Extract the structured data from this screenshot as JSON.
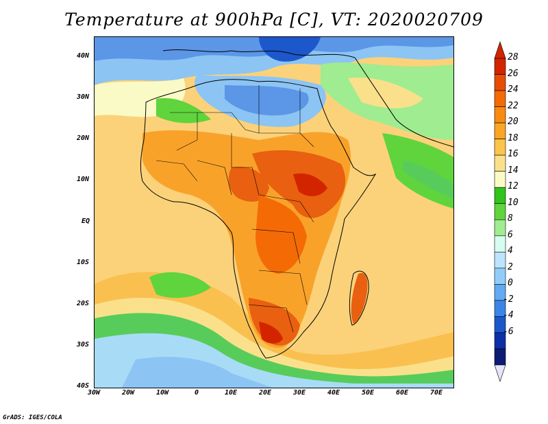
{
  "title": "Temperature at 900hPa [C], VT: 2020020709",
  "credit": "GrADS: IGES/COLA",
  "axes": {
    "lat_labels": [
      "40N",
      "30N",
      "20N",
      "10N",
      "EQ",
      "10S",
      "20S",
      "30S",
      "40S"
    ],
    "lon_labels": [
      "30W",
      "20W",
      "10W",
      "0",
      "10E",
      "20E",
      "30E",
      "40E",
      "50E",
      "60E",
      "70E"
    ]
  },
  "colorbar": {
    "levels": [
      "28",
      "26",
      "24",
      "22",
      "20",
      "18",
      "16",
      "14",
      "12",
      "10",
      "8",
      "6",
      "4",
      "2",
      "0",
      "-2",
      "-4",
      "-6"
    ],
    "colors": [
      "#d32400",
      "#e84c04",
      "#f46b06",
      "#f98b10",
      "#faa624",
      "#fbc44a",
      "#fbe08c",
      "#fafac6",
      "#30c41c",
      "#60d43c",
      "#a0ec90",
      "#d8fcf0",
      "#bde4fc",
      "#92cdfa",
      "#62aaf2",
      "#3c84e8",
      "#1c58cc",
      "#0c30a8",
      "#0c1c74"
    ],
    "over_color": "#d32400",
    "under_color": "#e6e6fa"
  },
  "map": {
    "ocean_color": "#fbdc80",
    "regions": [
      {
        "name": "mediterranean-cold",
        "color": "#5c96e6"
      },
      {
        "name": "north-africa-cool",
        "color": "#8cc4f4"
      },
      {
        "name": "sahel-warm",
        "color": "#f9a22a"
      },
      {
        "name": "central-hot",
        "color": "#e86010"
      },
      {
        "name": "south-ocean-green",
        "color": "#58cc5a"
      },
      {
        "name": "south-ocean-cool",
        "color": "#a8dcf6"
      }
    ]
  }
}
